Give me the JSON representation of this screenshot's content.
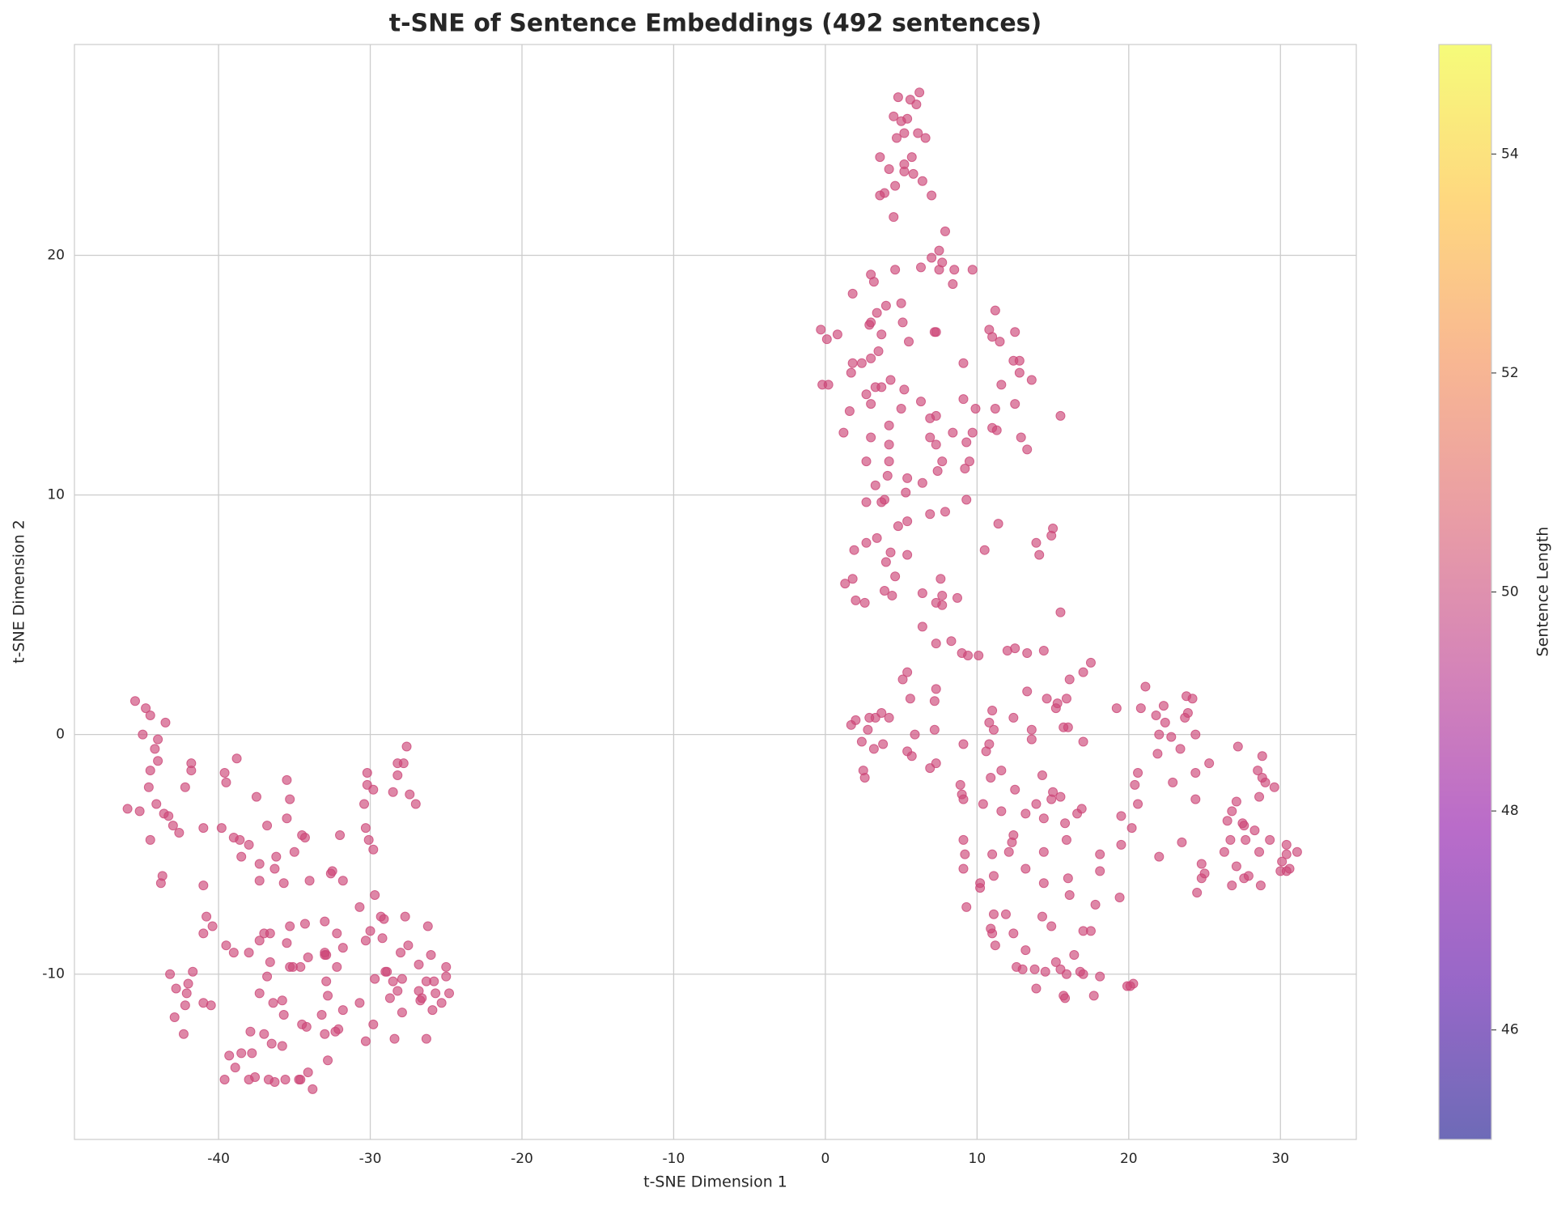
{
  "chart_data": {
    "type": "scatter",
    "title": "t-SNE of Sentence Embeddings (492 sentences)",
    "x_label": "t-SNE Dimension 1",
    "y_label": "t-SNE Dimension 2",
    "color": "#cc4778",
    "grid": true,
    "xlim": [
      -49.5,
      35
    ],
    "ylim": [
      -16.9,
      28.8
    ],
    "xticks": [
      -40,
      -30,
      -20,
      -10,
      0,
      10,
      20,
      30
    ],
    "yticks": [
      -10,
      0,
      10,
      20
    ],
    "colorbar": {
      "label": "Sentence Length",
      "colormap": "plasma",
      "lim": [
        45,
        55
      ],
      "ticks": [
        46,
        48,
        50,
        52,
        54
      ]
    },
    "x": [
      -45.5,
      -44.8,
      -44.5,
      -43.5,
      -45,
      -44,
      -44.2,
      -44,
      -44.5,
      -44.6,
      -46,
      -45.2,
      -44.1,
      -43.6,
      -43.3,
      -43,
      -42.6,
      -44.5,
      -41.8,
      -41.8,
      -42.2,
      -41,
      -39.6,
      -39.5,
      -38.8,
      -39.8,
      -39,
      -38.6,
      -38,
      -37.5,
      -36.8,
      -37.3,
      -38.5,
      -36.2,
      -36.3,
      -37.3,
      -35.5,
      -35.3,
      -35.5,
      -35,
      -35.7,
      -34.5,
      -34.3,
      -34,
      -32.5,
      -32.6,
      -31.8,
      -32,
      -30.2,
      -30.2,
      -29.8,
      -30.4,
      -30.3,
      -30.1,
      -29.8,
      -27.6,
      -28.2,
      -27.8,
      -28.2,
      -28.5,
      -27.4,
      -27,
      -43.7,
      -43.8,
      -41,
      -40.8,
      -41,
      -40.4,
      -39.5,
      -39,
      -38,
      -37,
      -37.3,
      -36.6,
      -36.6,
      -35.5,
      -35.3,
      -35.3,
      -35.1,
      -34.6,
      -34.1,
      -34.3,
      -33,
      -32.9,
      -33,
      -32.2,
      -31.8,
      -32.2,
      -30.7,
      -29.7,
      -30.3,
      -30,
      -29.3,
      -29.1,
      -29.2,
      -28.9,
      -28,
      -27.5,
      -27.7,
      -26.2,
      -26,
      -25,
      -26.8,
      -43.2,
      -41.7,
      -42.8,
      -42,
      -42.1,
      -41,
      -40.5,
      -42.2,
      -42.9,
      -42.3,
      -39.6,
      -39.3,
      -38.9,
      -38.5,
      -38,
      -37.9,
      -37.8,
      -37.6,
      -37.3,
      -37,
      -36.8,
      -36.5,
      -36.7,
      -36.3,
      -36.4,
      -35.8,
      -35.8,
      -35.7,
      -35.6,
      -34.7,
      -34.6,
      -34.5,
      -34.2,
      -34.1,
      -33.8,
      -33.2,
      -33,
      -32.8,
      -32.8,
      -32.9,
      -32.3,
      -32.1,
      -31.8,
      -30.7,
      -30.3,
      -29.8,
      -29.7,
      -29,
      -28.7,
      -28.4,
      -28.2,
      -28.5,
      -27.9,
      -27.9,
      -26.8,
      -26.6,
      -26.7,
      -26.3,
      -26.3,
      -25.8,
      -25.9,
      -25.7,
      -25.3,
      -25,
      -24.8,
      -33,
      6.2,
      4.8,
      5.6,
      6,
      5.4,
      4.5,
      5,
      5.2,
      6.1,
      4.7,
      6.6,
      3.6,
      5.7,
      5.2,
      4.2,
      5.2,
      5.8,
      6.4,
      4.6,
      3.6,
      3.9,
      7,
      4.5,
      7.9,
      7.5,
      7,
      7.7,
      6.3,
      4.6,
      7.5,
      9.7,
      8.5,
      3,
      3.2,
      8.4,
      1.8,
      4,
      5,
      11.2,
      3.4,
      5.1,
      2.9,
      3,
      -0.3,
      0.8,
      3.7,
      7.2,
      7.3,
      10.8,
      12.5,
      0.1,
      5.5,
      11,
      11.5,
      3.5,
      1.8,
      2.4,
      3,
      12.4,
      12.8,
      1.7,
      9.1,
      12.8,
      4.3,
      13.6,
      -0.2,
      0.2,
      3.3,
      3.7,
      5.2,
      11.6,
      2.7,
      6.3,
      9.1,
      3,
      12.5,
      1.6,
      5,
      9.9,
      11.2,
      7.3,
      6.9,
      15.5,
      4.2,
      1.2,
      8.4,
      9.7,
      11,
      11.3,
      3,
      6.9,
      12.9,
      4.2,
      7.3,
      9.3,
      13.3,
      7.7,
      2.7,
      4.2,
      9.5,
      7.4,
      9.2,
      4.1,
      5.4,
      6.4,
      3.3,
      5.3,
      3.9,
      2.7,
      3.7,
      9.3,
      6.9,
      7.9,
      5.4,
      4.8,
      11.4,
      15,
      3.4,
      14.9,
      2.7,
      13.9,
      1.9,
      10.5,
      4.3,
      5.4,
      14.1,
      4,
      1.8,
      4.6,
      7.6,
      1.3,
      3.9,
      6.4,
      4.4,
      7.7,
      8.7,
      2,
      2.6,
      7.3,
      7.7,
      15.5,
      6.4,
      8.3,
      7.3,
      9,
      9.4,
      10.1,
      12,
      12.5,
      13.3,
      14.4,
      17.5,
      17,
      16.1,
      21.1,
      5.4,
      5.1,
      7.3,
      13.3,
      14.6,
      15.9,
      23.8,
      24.2,
      5.6,
      7.2,
      15.3,
      15.2,
      19.2,
      20.8,
      22.3,
      11,
      3.7,
      2,
      2.9,
      3.3,
      4.2,
      12.4,
      21.8,
      23.9,
      23.7,
      1.7,
      10.8,
      22.4,
      16,
      2.8,
      7.2,
      11.1,
      13.6,
      15.7,
      5.9,
      22,
      22.8,
      24.4,
      2.4,
      3.8,
      9.1,
      10.8,
      13.6,
      17,
      27.2,
      3.2,
      5.4,
      10.6,
      21.9,
      23.4,
      28.8,
      5.7,
      7.3,
      6.9,
      2.5,
      2.6,
      11.6,
      14.3,
      10.9,
      20.6,
      24.4,
      25.3,
      28.5,
      28.8,
      29,
      8.9,
      12.5,
      15,
      15.5,
      14.9,
      20.4,
      22.9,
      27.1,
      24.4,
      28.6,
      29.6,
      9.1,
      9,
      10.4,
      11.6,
      13.2,
      13.9,
      16.6,
      16.9,
      20.6,
      26.8,
      14.4,
      15.8,
      19.5,
      26.5,
      27.5,
      27.6,
      28.3,
      20.2,
      9.1,
      12.4,
      12.3,
      15.9,
      23.5,
      26.7,
      27.7,
      29.3,
      19.5,
      30.4,
      9.2,
      11,
      12.1,
      14.4,
      18.1,
      22,
      26.3,
      28.6,
      30.4,
      31.1,
      24.8,
      30.1,
      9.1,
      13.2,
      18.1,
      25,
      27.1,
      27.6,
      30.6,
      30,
      30.4,
      11.1,
      16,
      14.4,
      10.2,
      10.2,
      24.8,
      27.9,
      28.7,
      26.8,
      24.5,
      16.1,
      19.4,
      9.3,
      17.8,
      11.1,
      11.9,
      14.3,
      10.9,
      11,
      12.4,
      14.9,
      17,
      17.5,
      11.2,
      13.2,
      16.4,
      12.6,
      13,
      13.8,
      15.2,
      15.5,
      14.5,
      16.8,
      17,
      15.9,
      18.1,
      19.9,
      20.3,
      13.9,
      15.7,
      15.8,
      17.7,
      20.1
    ],
    "values": [
      1.4,
      1.1,
      0.8,
      0.5,
      0,
      -0.2,
      -0.6,
      -1.1,
      -1.5,
      -2.2,
      -3.1,
      -3.2,
      -2.9,
      -3.3,
      -3.4,
      -3.8,
      -4.1,
      -4.4,
      -1.2,
      -1.5,
      -2.2,
      -3.9,
      -1.6,
      -2,
      -1,
      -3.9,
      -4.3,
      -4.4,
      -4.6,
      -2.6,
      -3.8,
      -5.4,
      -5.1,
      -5.1,
      -5.6,
      -6.1,
      -1.9,
      -2.7,
      -3.5,
      -4.9,
      -6.2,
      -4.2,
      -4.3,
      -6.1,
      -5.7,
      -5.8,
      -6.1,
      -4.2,
      -1.6,
      -2.1,
      -2.3,
      -2.9,
      -3.9,
      -4.4,
      -4.8,
      -0.5,
      -1.2,
      -1.2,
      -1.7,
      -2.4,
      -2.5,
      -2.9,
      -5.9,
      -6.2,
      -6.3,
      -7.6,
      -8.3,
      -8,
      -8.8,
      -9.1,
      -9.1,
      -8.3,
      -8.6,
      -8.3,
      -9.5,
      -8.7,
      -8,
      -9.7,
      -9.7,
      -9.7,
      -9.3,
      -7.9,
      -9.1,
      -9.2,
      -7.8,
      -8.3,
      -8.9,
      -9.7,
      -7.2,
      -6.7,
      -8.6,
      -8.2,
      -7.6,
      -7.7,
      -8.5,
      -9.9,
      -9.1,
      -8.8,
      -7.6,
      -8,
      -9.2,
      -9.7,
      -9.6,
      -10,
      -9.9,
      -10.6,
      -10.4,
      -10.8,
      -11.2,
      -11.3,
      -11.3,
      -11.8,
      -12.5,
      -14.4,
      -13.4,
      -13.9,
      -13.3,
      -14.4,
      -12.4,
      -13.3,
      -14.3,
      -10.8,
      -12.5,
      -10.1,
      -12.9,
      -14.4,
      -14.5,
      -11.2,
      -11.1,
      -13,
      -11.7,
      -14.4,
      -14.4,
      -14.4,
      -12.1,
      -12.2,
      -14.1,
      -14.8,
      -11.7,
      -12.5,
      -10.9,
      -13.6,
      -10.3,
      -12.4,
      -12.3,
      -11.5,
      -11.2,
      -12.8,
      -12.1,
      -10.2,
      -9.9,
      -11,
      -12.7,
      -10.7,
      -10.3,
      -11.6,
      -10.2,
      -10.7,
      -11,
      -11.1,
      -10.3,
      -12.7,
      -10.3,
      -11.5,
      -10.8,
      -11.2,
      -10.1,
      -10.8,
      -9.2,
      26.8,
      26.6,
      26.5,
      26.3,
      25.7,
      25.8,
      25.6,
      25.1,
      25.1,
      24.9,
      24.9,
      24.1,
      24.1,
      23.8,
      23.6,
      23.5,
      23.4,
      23.1,
      22.9,
      22.5,
      22.6,
      22.5,
      21.6,
      21,
      20.2,
      19.9,
      19.7,
      19.5,
      19.4,
      19.4,
      19.4,
      19.4,
      19.2,
      18.9,
      18.8,
      18.4,
      17.9,
      18,
      17.7,
      17.6,
      17.2,
      17.1,
      17.2,
      16.9,
      16.7,
      16.7,
      16.8,
      16.8,
      16.9,
      16.8,
      16.5,
      16.4,
      16.6,
      16.4,
      16,
      15.5,
      15.5,
      15.7,
      15.6,
      15.6,
      15.1,
      15.5,
      15.1,
      14.8,
      14.8,
      14.6,
      14.6,
      14.5,
      14.5,
      14.4,
      14.6,
      14.2,
      13.9,
      14,
      13.8,
      13.8,
      13.5,
      13.6,
      13.6,
      13.6,
      13.3,
      13.2,
      13.3,
      12.9,
      12.6,
      12.6,
      12.6,
      12.8,
      12.7,
      12.4,
      12.4,
      12.4,
      12.1,
      12.1,
      12.2,
      11.9,
      11.4,
      11.4,
      11.4,
      11.4,
      11,
      11.1,
      10.8,
      10.7,
      10.5,
      10.4,
      10.1,
      9.8,
      9.7,
      9.7,
      9.8,
      9.2,
      9.3,
      8.9,
      8.7,
      8.8,
      8.6,
      8.2,
      8.3,
      8,
      8,
      7.7,
      7.7,
      7.6,
      7.5,
      7.5,
      7.2,
      6.5,
      6.6,
      6.5,
      6.3,
      6,
      5.9,
      5.8,
      5.8,
      5.7,
      5.6,
      5.5,
      5.5,
      5.4,
      5.1,
      4.5,
      3.9,
      3.8,
      3.4,
      3.3,
      3.3,
      3.5,
      3.6,
      3.4,
      3.5,
      3,
      2.6,
      2.3,
      2,
      2.6,
      2.3,
      1.9,
      1.8,
      1.5,
      1.5,
      1.6,
      1.5,
      1.5,
      1.4,
      1.3,
      1.1,
      1.1,
      1.1,
      1.2,
      1,
      0.9,
      0.6,
      0.7,
      0.7,
      0.7,
      0.7,
      0.8,
      0.9,
      0.7,
      0.4,
      0.5,
      0.5,
      0.3,
      0.2,
      0.2,
      0.2,
      0.2,
      0.3,
      0,
      0,
      -0.1,
      0,
      -0.3,
      -0.4,
      -0.4,
      -0.4,
      -0.2,
      -0.3,
      -0.5,
      -0.6,
      -0.7,
      -0.7,
      -0.8,
      -0.6,
      -0.9,
      -0.9,
      -1.2,
      -1.4,
      -1.5,
      -1.8,
      -1.5,
      -1.7,
      -1.8,
      -1.6,
      -1.6,
      -1.2,
      -1.5,
      -1.8,
      -2,
      -2.1,
      -2.3,
      -2.4,
      -2.6,
      -2.7,
      -2.1,
      -2,
      -2.8,
      -2.7,
      -2.6,
      -2.2,
      -2.7,
      -2.5,
      -2.9,
      -3.2,
      -3.3,
      -2.9,
      -3.3,
      -3.1,
      -2.9,
      -3.2,
      -3.5,
      -3.7,
      -3.4,
      -3.6,
      -3.7,
      -3.8,
      -4,
      -3.9,
      -4.4,
      -4.2,
      -4.5,
      -4.4,
      -4.5,
      -4.4,
      -4.4,
      -4.4,
      -4.6,
      -4.6,
      -5,
      -5,
      -4.9,
      -4.9,
      -5,
      -5.1,
      -4.9,
      -4.9,
      -5,
      -4.9,
      -5.4,
      -5.3,
      -5.6,
      -5.6,
      -5.7,
      -5.8,
      -5.5,
      -6,
      -5.6,
      -5.7,
      -5.7,
      -5.9,
      -6,
      -6.2,
      -6.2,
      -6.4,
      -6,
      -5.9,
      -6.3,
      -6.3,
      -6.6,
      -6.7,
      -6.8,
      -7.2,
      -7.1,
      -7.5,
      -7.5,
      -7.6,
      -8.1,
      -8.3,
      -8.3,
      -8,
      -8.2,
      -8.2,
      -8.8,
      -9,
      -9.2,
      -9.7,
      -9.8,
      -9.8,
      -9.5,
      -9.8,
      -9.9,
      -9.9,
      -10,
      -10,
      -10.1,
      -10.5,
      -10.4,
      -10.6,
      -10.9,
      -11,
      -10.9,
      -10.5
    ]
  }
}
